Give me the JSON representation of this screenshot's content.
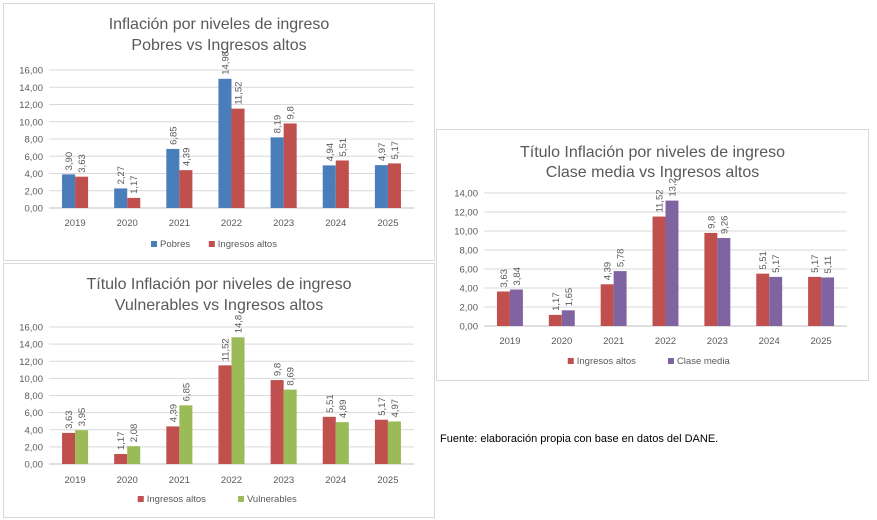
{
  "colors": {
    "pobres": "#4a7ebb",
    "ingresos_altos": "#c0504d",
    "vulnerables": "#9bbb59",
    "clase_media": "#8064a2",
    "grid": "#d9d9d9",
    "axis": "#bfbfbf",
    "text": "#595959"
  },
  "source": "Fuente: elaboración propia con base en datos del DANE.",
  "chart_data": [
    {
      "type": "bar",
      "title": "Inflación por niveles de ingreso",
      "subtitle": "Pobres vs Ingresos altos",
      "categories": [
        "2019",
        "2020",
        "2021",
        "2022",
        "2023",
        "2024",
        "2025"
      ],
      "ylim": [
        0,
        16
      ],
      "yticks": [
        "0,00",
        "2,00",
        "4,00",
        "6,00",
        "8,00",
        "10,00",
        "12,00",
        "14,00",
        "16,00"
      ],
      "grid": true,
      "legend": "bottom",
      "series": [
        {
          "name": "Pobres",
          "color": "#4a7ebb",
          "values": [
            3.9,
            2.27,
            6.85,
            14.98,
            8.19,
            4.94,
            4.97
          ],
          "labels": [
            "3,90",
            "2,27",
            "6,85",
            "14,98",
            "8,19",
            "4,94",
            "4,97"
          ]
        },
        {
          "name": "Ingresos altos",
          "color": "#c0504d",
          "values": [
            3.63,
            1.17,
            4.39,
            11.52,
            9.8,
            5.51,
            5.17
          ],
          "labels": [
            "3,63",
            "1,17",
            "4,39",
            "11,52",
            "9,8",
            "5,51",
            "5,17"
          ]
        }
      ]
    },
    {
      "type": "bar",
      "title": "Título Inflación por niveles de ingreso",
      "subtitle": "Vulnerables vs Ingresos altos",
      "categories": [
        "2019",
        "2020",
        "2021",
        "2022",
        "2023",
        "2024",
        "2025"
      ],
      "ylim": [
        0,
        16
      ],
      "yticks": [
        "0,00",
        "2,00",
        "4,00",
        "6,00",
        "8,00",
        "10,00",
        "12,00",
        "14,00",
        "16,00"
      ],
      "grid": true,
      "legend": "bottom",
      "series": [
        {
          "name": "Ingresos altos",
          "color": "#c0504d",
          "values": [
            3.63,
            1.17,
            4.39,
            11.52,
            9.8,
            5.51,
            5.17
          ],
          "labels": [
            "3,63",
            "1,17",
            "4,39",
            "11,52",
            "9,8",
            "5,51",
            "5,17"
          ]
        },
        {
          "name": "Vulnerables",
          "color": "#9bbb59",
          "values": [
            3.95,
            2.08,
            6.85,
            14.8,
            8.69,
            4.89,
            4.97
          ],
          "labels": [
            "3,95",
            "2,08",
            "6,85",
            "14,8",
            "8,69",
            "4,89",
            "4,97"
          ]
        }
      ]
    },
    {
      "type": "bar",
      "title": "Título Inflación por niveles de ingreso",
      "subtitle": "Clase media vs Ingresos altos",
      "categories": [
        "2019",
        "2020",
        "2021",
        "2022",
        "2023",
        "2024",
        "2025"
      ],
      "ylim": [
        0,
        14
      ],
      "yticks": [
        "0,00",
        "2,00",
        "4,00",
        "6,00",
        "8,00",
        "10,00",
        "12,00",
        "14,00"
      ],
      "grid": true,
      "legend": "bottom",
      "series": [
        {
          "name": "Ingresos altos",
          "color": "#c0504d",
          "values": [
            3.63,
            1.17,
            4.39,
            11.52,
            9.8,
            5.51,
            5.17
          ],
          "labels": [
            "3,63",
            "1,17",
            "4,39",
            "11,52",
            "9,8",
            "5,51",
            "5,17"
          ]
        },
        {
          "name": "Clase media",
          "color": "#8064a2",
          "values": [
            3.84,
            1.65,
            5.78,
            13.2,
            9.26,
            5.17,
            5.11
          ],
          "labels": [
            "3,84",
            "1,65",
            "5,78",
            "13,2",
            "9,26",
            "5,17",
            "5,11"
          ]
        }
      ]
    }
  ]
}
